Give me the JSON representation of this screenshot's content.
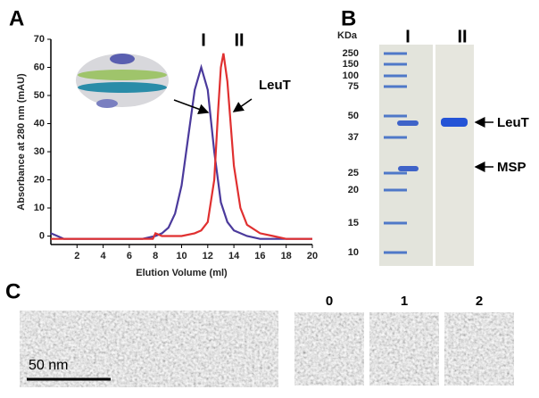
{
  "chart_data": {
    "type": "line",
    "xlabel": "Elution Volume (ml)",
    "ylabel": "Absorbance at 280 nm (mAU)",
    "xlim": [
      0,
      20
    ],
    "xticks": [
      2,
      4,
      6,
      8,
      10,
      12,
      14,
      16,
      18,
      20
    ],
    "ylim": [
      -3,
      70
    ],
    "yticks": [
      0,
      10,
      20,
      30,
      40,
      50,
      60,
      70
    ],
    "annotations": [
      "I",
      "II",
      "LeuT"
    ],
    "series": [
      {
        "name": "I",
        "color": "#4b3a9c",
        "x": [
          0,
          0.5,
          1,
          2,
          4,
          6,
          7,
          8,
          8.5,
          9,
          9.5,
          10,
          10.5,
          11,
          11.5,
          12,
          12.5,
          13,
          13.5,
          14,
          15,
          16,
          18,
          20
        ],
        "values": [
          1,
          0,
          -1,
          -1,
          -1,
          -1,
          -1,
          0,
          1,
          3,
          8,
          18,
          35,
          52,
          60,
          52,
          30,
          12,
          5,
          2,
          0,
          -1,
          -1,
          -1
        ]
      },
      {
        "name": "II",
        "color": "#e03030",
        "x": [
          0,
          2,
          4,
          6,
          7.8,
          8,
          8.5,
          10,
          11,
          11.5,
          12,
          12.5,
          12.8,
          13,
          13.2,
          13.5,
          14,
          14.5,
          15,
          16,
          17,
          18,
          20
        ],
        "values": [
          -1,
          -1,
          -1,
          -1,
          -1,
          1,
          0,
          0,
          1,
          2,
          5,
          20,
          45,
          60,
          65,
          55,
          25,
          10,
          4,
          1,
          0,
          -1,
          -1
        ]
      }
    ]
  },
  "panel_labels": [
    "A",
    "B",
    "C"
  ],
  "gel": {
    "unit": "KDa",
    "markers": [
      250,
      150,
      100,
      75,
      50,
      37,
      25,
      20,
      15,
      10
    ],
    "lanes": [
      "I",
      "II"
    ],
    "bands": [
      "LeuT",
      "MSP"
    ]
  },
  "micrographs": {
    "scale_bar": "50 nm",
    "classes": [
      "0",
      "1",
      "2"
    ]
  }
}
